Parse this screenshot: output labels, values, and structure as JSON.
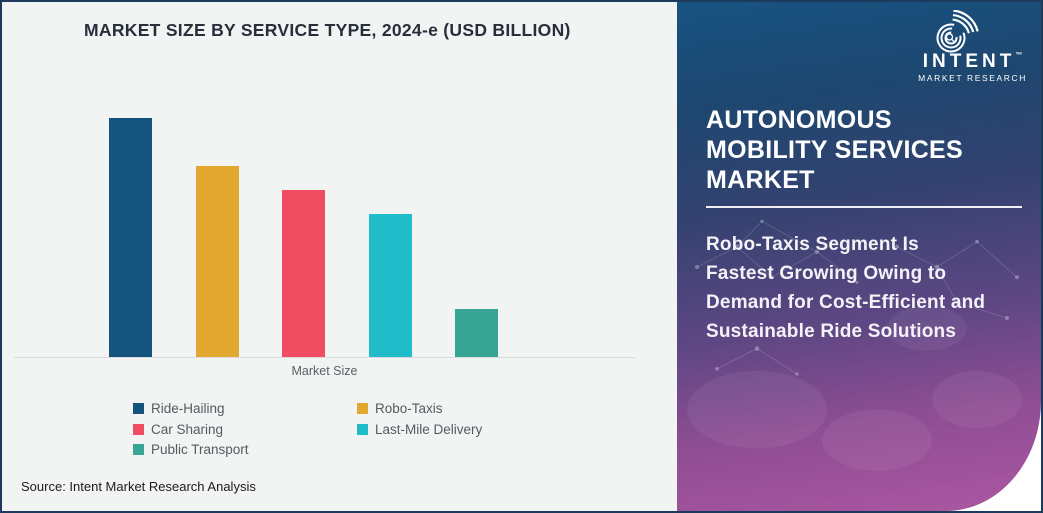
{
  "chart": {
    "title": "MARKET SIZE BY SERVICE TYPE, 2024-e (USD BILLION)",
    "xlabel": "Market Size",
    "source": "Source: Intent Market Research Analysis"
  },
  "chart_data": {
    "type": "bar",
    "title": "MARKET SIZE BY SERVICE TYPE, 2024-e (USD BILLION)",
    "categories": [
      "Ride-Hailing",
      "Robo-Taxis",
      "Car Sharing",
      "Last-Mile Delivery",
      "Public Transport"
    ],
    "values": [
      100,
      80,
      70,
      60,
      20
    ],
    "values_are_relative": true,
    "xlabel": "Market Size",
    "ylabel": "",
    "ylim": [
      0,
      105
    ],
    "grid": false,
    "legend_position": "bottom",
    "colors": [
      "#15537f",
      "#e2a72e",
      "#ef4d62",
      "#20bcc9",
      "#38a493"
    ]
  },
  "panel": {
    "title_lines": [
      "AUTONOMOUS",
      "MOBILITY SERVICES",
      "MARKET"
    ],
    "subtitle_lines": [
      "Robo-Taxis Segment Is",
      "Fastest Growing Owing to",
      "Demand for Cost-Efficient and",
      "Sustainable Ride Solutions"
    ],
    "logo": {
      "name": "INTENT",
      "tm": "™",
      "sub": "MARKET RESEARCH"
    },
    "gradient_stops": [
      "#175381 0%",
      "#1e4770 20%",
      "#354270 40%",
      "#5f4784 62%",
      "#8f4d93 80%",
      "#ab57a1 100%"
    ]
  },
  "colors": {
    "frame_border": "#1c3a5c",
    "chart_background": "#f2f3f3",
    "axis_line": "#d8dadb",
    "title_text": "#262f3a"
  }
}
